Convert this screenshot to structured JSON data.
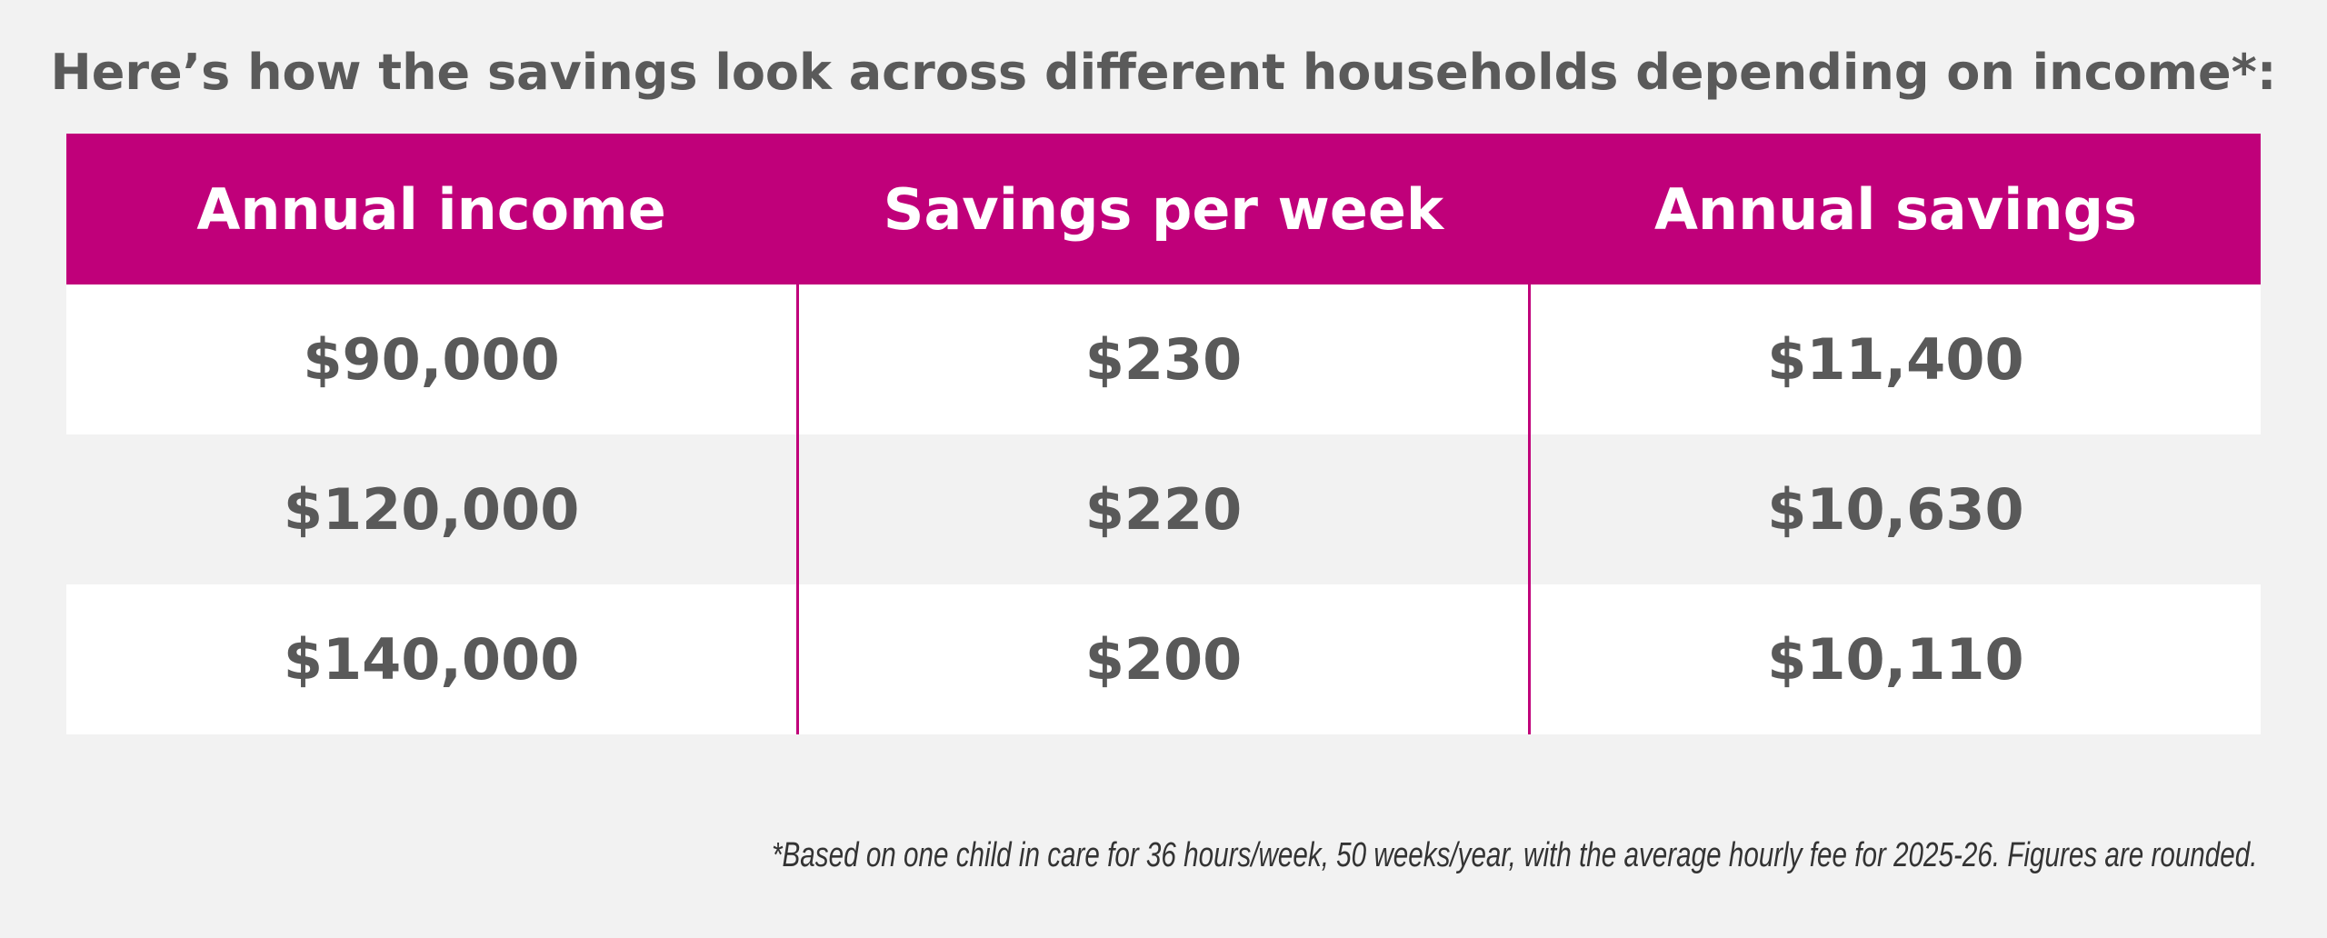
{
  "title": "Here’s how the savings look across different households depending on income*:",
  "table": {
    "headers": [
      "Annual income",
      "Savings per week",
      "Annual savings"
    ],
    "rows": [
      [
        "$90,000",
        "$230",
        "$11,400"
      ],
      [
        "$120,000",
        "$220",
        "$10,630"
      ],
      [
        "$140,000",
        "$200",
        "$10,110"
      ]
    ]
  },
  "footnote": "*Based on one child in care for 36 hours/week, 50 weeks/year, with the average hourly fee for 2025-26. Figures are rounded."
}
